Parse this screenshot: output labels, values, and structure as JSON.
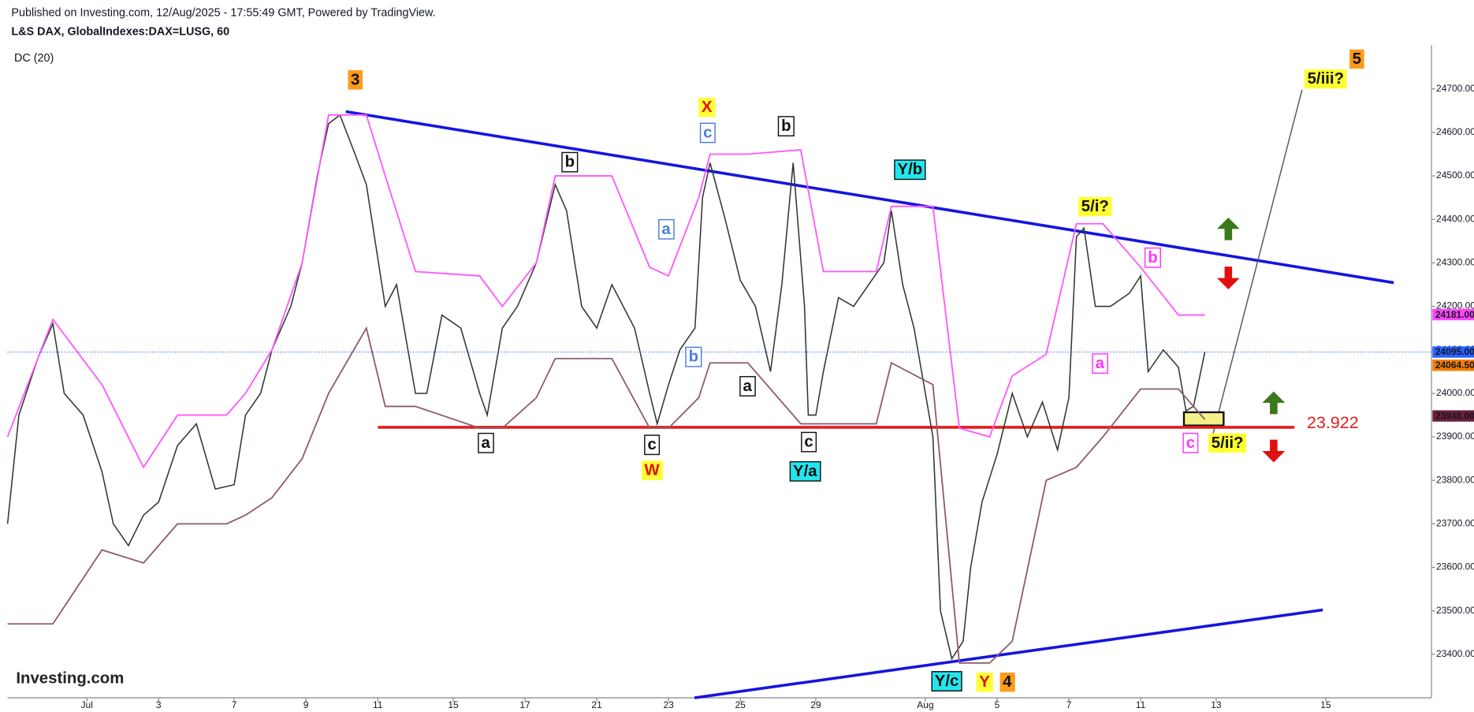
{
  "header": {
    "published": "Published on Investing.com, 12/Aug/2025 - 17:55:49 GMT, Powered by TradingView.",
    "symbol": "L&S DAX, GlobalIndexes:DAX=LUSG, 60",
    "indicator": "DC (20)",
    "logo": "Investing.com"
  },
  "chart_data": {
    "type": "line",
    "xlim": [
      0,
      377
    ],
    "ylim": [
      23300,
      24800
    ],
    "xticks": [
      {
        "value": 21,
        "label": "Jul"
      },
      {
        "value": 40,
        "label": "3"
      },
      {
        "value": 60,
        "label": "7"
      },
      {
        "value": 79,
        "label": "9"
      },
      {
        "value": 98,
        "label": "11"
      },
      {
        "value": 118,
        "label": "15"
      },
      {
        "value": 137,
        "label": "17"
      },
      {
        "value": 156,
        "label": "21"
      },
      {
        "value": 175,
        "label": "23"
      },
      {
        "value": 194,
        "label": "25"
      },
      {
        "value": 214,
        "label": "29"
      },
      {
        "value": 243,
        "label": "Aug"
      },
      {
        "value": 262,
        "label": "5"
      },
      {
        "value": 281,
        "label": "7"
      },
      {
        "value": 300,
        "label": "11"
      },
      {
        "value": 320,
        "label": "13"
      },
      {
        "value": 349,
        "label": "15"
      }
    ],
    "yticks": [
      {
        "value": 23400,
        "label": "23400.00"
      },
      {
        "value": 23500,
        "label": "23500.00"
      },
      {
        "value": 23600,
        "label": "23600.00"
      },
      {
        "value": 23700,
        "label": "23700.00"
      },
      {
        "value": 23800,
        "label": "23800.00"
      },
      {
        "value": 23900,
        "label": "23900.00"
      },
      {
        "value": 24000,
        "label": "24000.00"
      },
      {
        "value": 24100,
        "label": "24100.00"
      },
      {
        "value": 24200,
        "label": "24200.00"
      },
      {
        "value": 24300,
        "label": "24300.00"
      },
      {
        "value": 24400,
        "label": "24400.00"
      },
      {
        "value": 24500,
        "label": "24500.00"
      },
      {
        "value": 24600,
        "label": "24600.00"
      },
      {
        "value": 24700,
        "label": "24700.00"
      }
    ],
    "series": [
      {
        "color": "#2f3a2f",
        "x": [
          0,
          3,
          8,
          12,
          15,
          20,
          25,
          28,
          32,
          36,
          40,
          45,
          50,
          55,
          60,
          63,
          67,
          70,
          75,
          78,
          82,
          85,
          88,
          92,
          95,
          100,
          103,
          108,
          111,
          115,
          120,
          125,
          127,
          131,
          135,
          140,
          145,
          148,
          152,
          156,
          160,
          166,
          170,
          172,
          175,
          178,
          182,
          184,
          186,
          190,
          194,
          198,
          202,
          205,
          208,
          211,
          212,
          214,
          216,
          220,
          224,
          228,
          232,
          234,
          237,
          240,
          243,
          245,
          247,
          250,
          253,
          255,
          258,
          262,
          266,
          270,
          274,
          278,
          281,
          283,
          285,
          288,
          292,
          297,
          300,
          302,
          306,
          310,
          312,
          314,
          317
        ],
        "values": [
          23700,
          23950,
          24080,
          24160,
          24000,
          23950,
          23820,
          23700,
          23650,
          23720,
          23750,
          23880,
          23930,
          23780,
          23790,
          23950,
          24000,
          24100,
          24200,
          24300,
          24500,
          24620,
          24640,
          24550,
          24480,
          24200,
          24250,
          24000,
          24000,
          24180,
          24150,
          24000,
          23950,
          24150,
          24200,
          24300,
          24480,
          24420,
          24200,
          24150,
          24250,
          24150,
          24000,
          23930,
          24020,
          24100,
          24150,
          24450,
          24530,
          24400,
          24260,
          24200,
          24050,
          24250,
          24530,
          24200,
          23950,
          23950,
          24050,
          24220,
          24200,
          24250,
          24300,
          24420,
          24250,
          24150,
          24000,
          23900,
          23500,
          23390,
          23430,
          23600,
          23750,
          23860,
          24000,
          23900,
          23980,
          23870,
          23990,
          24360,
          24380,
          24200,
          24200,
          24230,
          24270,
          24050,
          24100,
          24060,
          23960,
          23970,
          24095
        ]
      },
      {
        "color": "#ff55ff",
        "x": [
          0,
          12,
          25,
          36,
          45,
          58,
          63,
          70,
          78,
          85,
          95,
          100,
          108,
          125,
          131,
          140,
          145,
          160,
          170,
          175,
          183,
          186,
          196,
          210,
          216,
          230,
          234,
          245,
          252,
          260,
          266,
          275,
          283,
          290,
          300,
          310,
          317
        ],
        "values": [
          23900,
          24170,
          24020,
          23830,
          23950,
          23950,
          24000,
          24100,
          24300,
          24640,
          24640,
          24500,
          24280,
          24270,
          24200,
          24300,
          24500,
          24500,
          24290,
          24270,
          24450,
          24550,
          24550,
          24560,
          24280,
          24280,
          24430,
          24430,
          23920,
          23900,
          24040,
          24090,
          24390,
          24390,
          24290,
          24180,
          24180
        ]
      },
      {
        "color": "#8e5a6a",
        "x": [
          0,
          12,
          25,
          36,
          45,
          58,
          63,
          70,
          78,
          85,
          95,
          100,
          108,
          125,
          131,
          140,
          145,
          160,
          170,
          175,
          183,
          186,
          196,
          210,
          216,
          230,
          234,
          245,
          252,
          260,
          266,
          275,
          283,
          290,
          300,
          310,
          317
        ],
        "values": [
          23470,
          23470,
          23640,
          23610,
          23700,
          23700,
          23720,
          23760,
          23850,
          24000,
          24150,
          23970,
          23970,
          23920,
          23920,
          23990,
          24080,
          24080,
          23920,
          23920,
          23990,
          24070,
          24070,
          23930,
          23930,
          23930,
          24070,
          24020,
          23380,
          23380,
          23430,
          23800,
          23830,
          23900,
          24010,
          24010,
          23940
        ]
      }
    ],
    "price_labels": [
      {
        "value": 24181,
        "label": "24181.00",
        "color": "#ff44ff"
      },
      {
        "value": 24095,
        "label": "24095.00",
        "color": "#2962ff"
      },
      {
        "value": 24064.5,
        "label": "24064.50",
        "color": "#f57c00"
      },
      {
        "value": 23948,
        "label": "23948.00",
        "color": "#6d1f3a"
      }
    ],
    "support": {
      "value": 23922,
      "label": "23.922"
    },
    "annotations": [
      "3",
      "b",
      "X",
      "c",
      "b",
      "Y/b",
      "a",
      "5/i?",
      "b",
      "b",
      "a",
      "a",
      "a",
      "c",
      "c",
      "W",
      "Y/a",
      "c",
      "5/ii?",
      "5/iii?",
      "5",
      "Y/c",
      "Y",
      "4"
    ]
  }
}
